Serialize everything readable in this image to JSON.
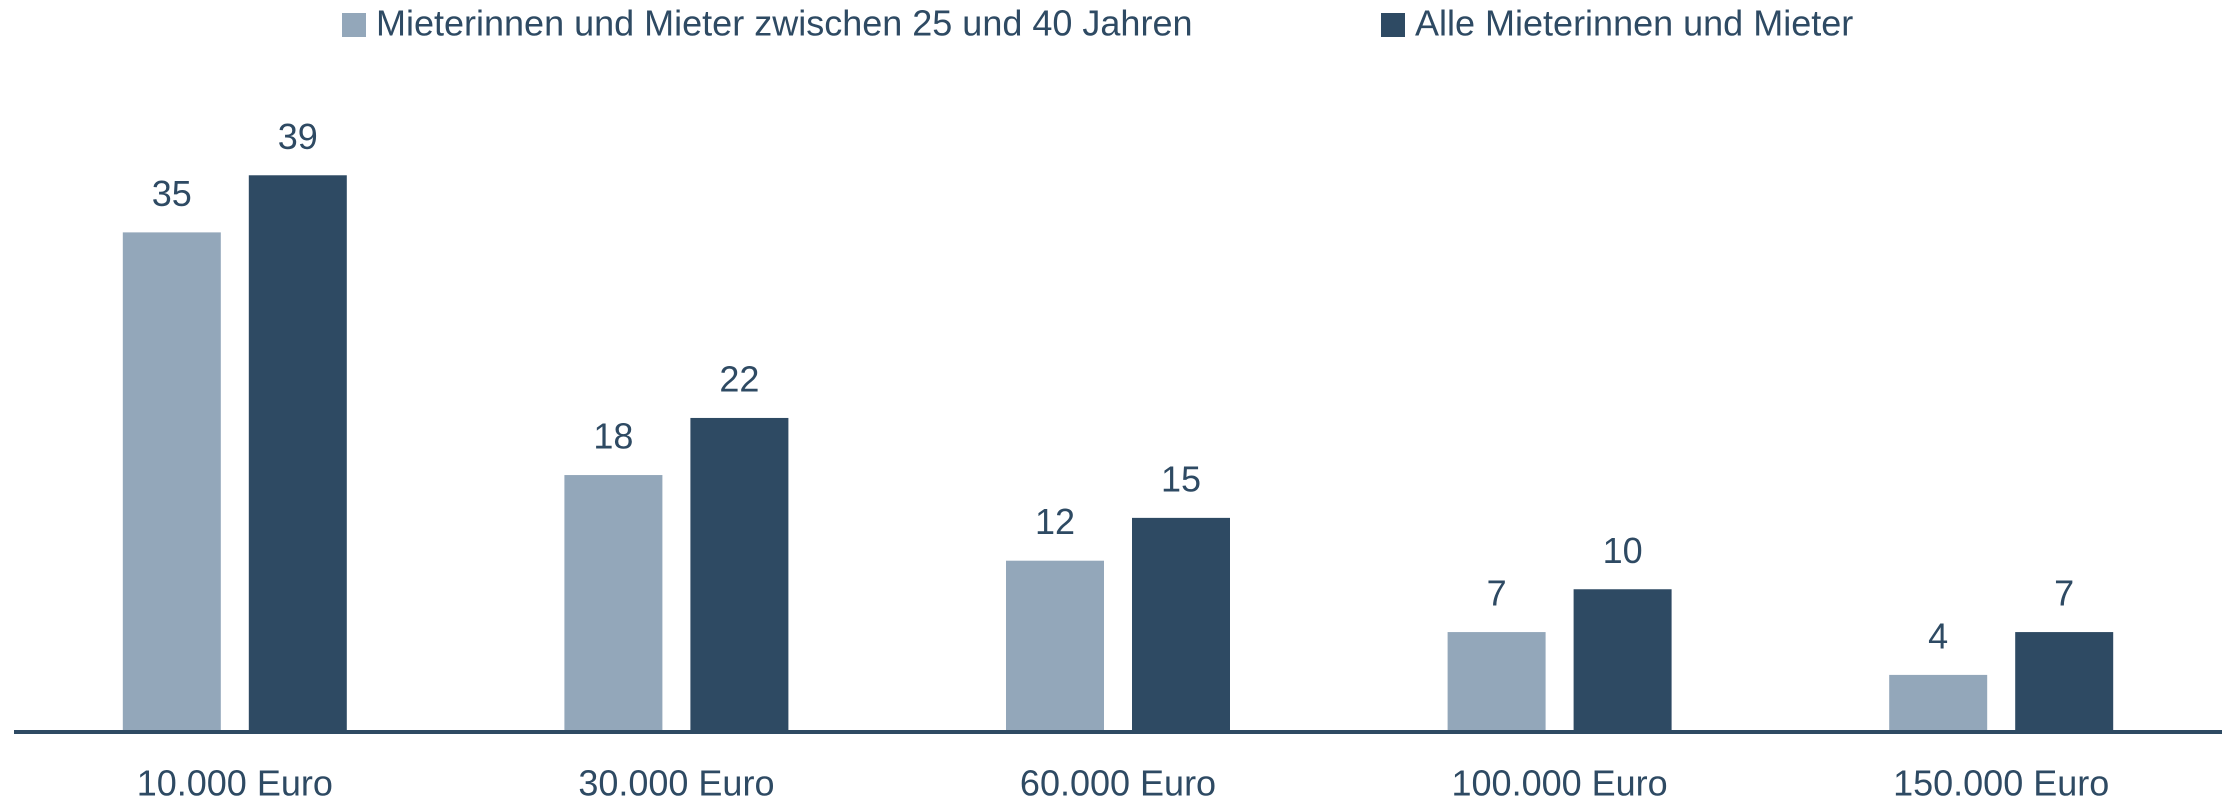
{
  "chart_data": {
    "type": "bar",
    "categories": [
      "10.000 Euro",
      "30.000 Euro",
      "60.000 Euro",
      "100.000 Euro",
      "150.000 Euro"
    ],
    "series": [
      {
        "name": "Mieterinnen und Mieter zwischen 25 und 40 Jahren",
        "color": "#93a7ba",
        "values": [
          35,
          18,
          12,
          7,
          4
        ]
      },
      {
        "name": "Alle Mieterinnen und Mieter",
        "color": "#2e4a63",
        "values": [
          39,
          22,
          15,
          10,
          7
        ]
      }
    ],
    "ylim": [
      0,
      40
    ],
    "legend": "top"
  }
}
